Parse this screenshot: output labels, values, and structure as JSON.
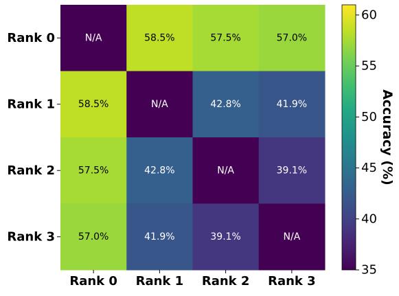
{
  "chart_data": {
    "type": "heatmap",
    "rows": [
      "Rank 0",
      "Rank 1",
      "Rank 2",
      "Rank 3"
    ],
    "cols": [
      "Rank 0",
      "Rank 1",
      "Rank 2",
      "Rank 3"
    ],
    "values": [
      [
        null,
        58.5,
        57.5,
        57.0
      ],
      [
        58.5,
        null,
        42.8,
        41.9
      ],
      [
        57.5,
        42.8,
        null,
        39.1
      ],
      [
        57.0,
        41.9,
        39.1,
        null
      ]
    ],
    "cell_labels": [
      [
        "N/A",
        "58.5%",
        "57.5%",
        "57.0%"
      ],
      [
        "58.5%",
        "N/A",
        "42.8%",
        "41.9%"
      ],
      [
        "57.5%",
        "42.8%",
        "N/A",
        "39.1%"
      ],
      [
        "57.0%",
        "41.9%",
        "39.1%",
        "N/A"
      ]
    ],
    "na_color_value": 35,
    "colormap": "viridis",
    "colorbar": {
      "label": "Accuracy (%)",
      "range": [
        35,
        61
      ],
      "ticks": [
        35,
        40,
        45,
        50,
        55,
        60
      ],
      "tick_labels": [
        "35",
        "40",
        "45",
        "50",
        "55",
        "60"
      ]
    }
  }
}
